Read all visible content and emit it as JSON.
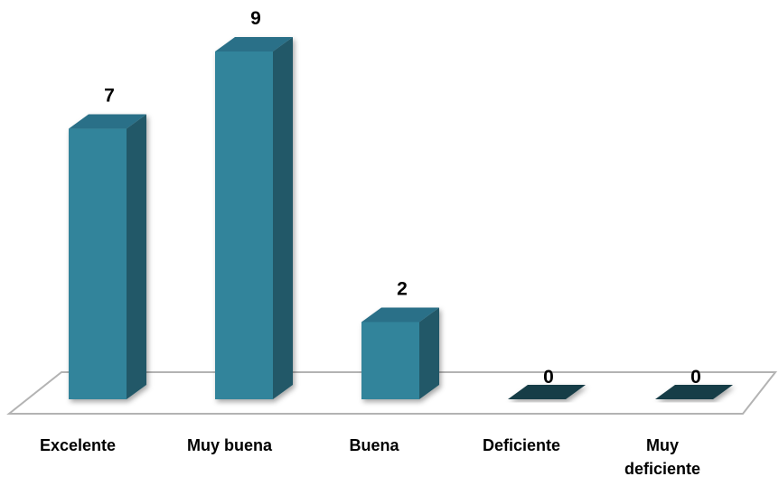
{
  "chart_data": {
    "type": "bar",
    "style": "3d-column",
    "categories": [
      [
        "Excelente"
      ],
      [
        "Muy buena"
      ],
      [
        "Buena"
      ],
      [
        "Deficiente"
      ],
      [
        "Muy",
        "deficiente"
      ]
    ],
    "values": [
      7,
      9,
      2,
      0,
      0
    ],
    "data_labels": [
      "7",
      "9",
      "2",
      "0",
      "0"
    ],
    "ylim": [
      0,
      9
    ],
    "grid": false,
    "legend": "none",
    "colors": {
      "front": "#31849b",
      "side": "#215868",
      "top": "#2b7088",
      "empty": "#173c46",
      "floor_edge": "#b3b3b3"
    }
  }
}
